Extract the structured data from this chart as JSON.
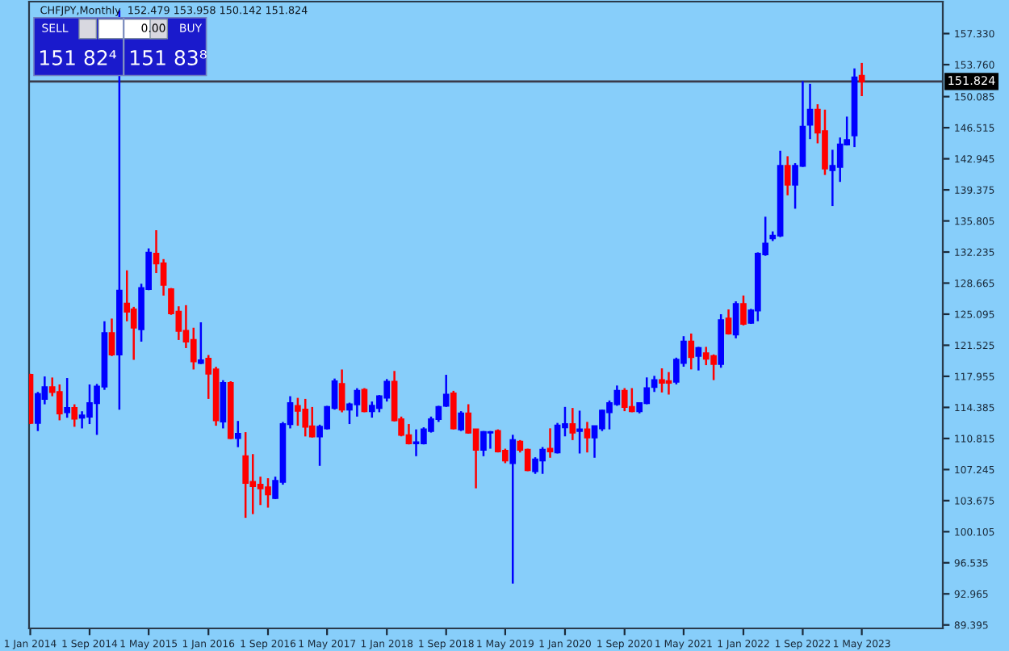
{
  "chart_data": {
    "type": "candlestick",
    "title": "CHFJPY,Monthly  152.479 153.958 150.142 151.824",
    "annotations": [
      "SELL",
      "0.00",
      "BUY",
      "151 82⁴",
      "151 83⁸"
    ],
    "x": [
      "2014-01",
      "2014-02",
      "2014-03",
      "2014-04",
      "2014-05",
      "2014-06",
      "2014-07",
      "2014-08",
      "2014-09",
      "2014-10",
      "2014-11",
      "2014-12",
      "2015-01",
      "2015-02",
      "2015-03",
      "2015-04",
      "2015-05",
      "2015-06",
      "2015-07",
      "2015-08",
      "2015-09",
      "2015-10",
      "2015-11",
      "2015-12",
      "2016-01",
      "2016-02",
      "2016-03",
      "2016-04",
      "2016-05",
      "2016-06",
      "2016-07",
      "2016-08",
      "2016-09",
      "2016-10",
      "2016-11",
      "2016-12",
      "2017-01",
      "2017-02",
      "2017-03",
      "2017-04",
      "2017-05",
      "2017-06",
      "2017-07",
      "2017-08",
      "2017-09",
      "2017-10",
      "2017-11",
      "2017-12",
      "2018-01",
      "2018-02",
      "2018-03",
      "2018-04",
      "2018-05",
      "2018-06",
      "2018-07",
      "2018-08",
      "2018-09",
      "2018-10",
      "2018-11",
      "2018-12",
      "2019-01",
      "2019-02",
      "2019-03",
      "2019-04",
      "2019-05",
      "2019-06",
      "2019-07",
      "2019-08",
      "2019-09",
      "2019-10",
      "2019-11",
      "2019-12",
      "2020-01",
      "2020-02",
      "2020-03",
      "2020-04",
      "2020-05",
      "2020-06",
      "2020-07",
      "2020-08",
      "2020-09",
      "2020-10",
      "2020-11",
      "2020-12",
      "2021-01",
      "2021-02",
      "2021-03",
      "2021-04",
      "2021-05",
      "2021-06",
      "2021-07",
      "2021-08",
      "2021-09",
      "2021-10",
      "2021-11",
      "2021-12",
      "2022-01",
      "2022-02",
      "2022-03",
      "2022-04",
      "2022-05",
      "2022-06",
      "2022-07",
      "2022-08",
      "2022-09",
      "2022-10",
      "2022-11",
      "2022-12",
      "2023-01",
      "2023-02",
      "2023-03",
      "2023-04",
      "2023-05"
    ],
    "ohlc": [
      [
        118.13,
        118.25,
        112.47,
        112.59
      ],
      [
        112.59,
        116.16,
        111.67,
        115.91
      ],
      [
        115.36,
        117.94,
        114.74,
        116.71
      ],
      [
        116.71,
        117.82,
        115.67,
        116.16
      ],
      [
        116.16,
        117.02,
        112.9,
        113.7
      ],
      [
        113.82,
        117.76,
        113.2,
        114.31
      ],
      [
        114.31,
        114.74,
        112.16,
        113.08
      ],
      [
        113.2,
        113.94,
        111.97,
        113.45
      ],
      [
        113.33,
        117.02,
        112.47,
        114.87
      ],
      [
        114.87,
        117.08,
        111.23,
        116.77
      ],
      [
        116.77,
        124.28,
        116.4,
        122.93
      ],
      [
        122.93,
        124.59,
        120.28,
        120.47
      ],
      [
        120.47,
        160.0,
        114.13,
        127.79
      ],
      [
        126.31,
        130.13,
        124.28,
        125.39
      ],
      [
        125.63,
        125.94,
        119.85,
        123.54
      ],
      [
        123.36,
        128.59,
        121.94,
        128.1
      ],
      [
        127.97,
        132.65,
        127.85,
        132.16
      ],
      [
        132.03,
        134.74,
        129.82,
        130.93
      ],
      [
        130.93,
        131.42,
        127.23,
        128.47
      ],
      [
        127.97,
        128.1,
        125.02,
        125.2
      ],
      [
        125.39,
        126.0,
        122.13,
        123.17
      ],
      [
        123.17,
        126.13,
        121.2,
        121.94
      ],
      [
        122.13,
        123.54,
        118.74,
        119.67
      ],
      [
        119.48,
        124.16,
        119.36,
        119.79
      ],
      [
        119.97,
        120.4,
        115.36,
        118.25
      ],
      [
        118.74,
        119.05,
        112.28,
        112.9
      ],
      [
        112.77,
        117.51,
        111.97,
        117.2
      ],
      [
        117.2,
        117.39,
        110.74,
        110.87
      ],
      [
        110.87,
        112.83,
        109.82,
        111.36
      ],
      [
        108.77,
        111.54,
        101.7,
        105.7
      ],
      [
        105.82,
        109.02,
        102.13,
        105.33
      ],
      [
        105.51,
        106.43,
        103.17,
        105.08
      ],
      [
        105.2,
        106.25,
        102.87,
        104.4
      ],
      [
        103.97,
        106.43,
        103.85,
        105.94
      ],
      [
        105.82,
        112.71,
        105.51,
        112.47
      ],
      [
        112.47,
        115.67,
        111.97,
        114.87
      ],
      [
        114.56,
        115.48,
        112.28,
        114.0
      ],
      [
        114.13,
        115.36,
        111.05,
        112.16
      ],
      [
        112.22,
        114.43,
        110.93,
        111.05
      ],
      [
        111.05,
        112.4,
        107.67,
        112.16
      ],
      [
        111.97,
        114.56,
        111.85,
        114.43
      ],
      [
        114.31,
        117.7,
        114.13,
        117.39
      ],
      [
        117.08,
        118.74,
        113.82,
        114.13
      ],
      [
        114.13,
        114.93,
        112.47,
        114.74
      ],
      [
        114.74,
        116.59,
        113.33,
        116.28
      ],
      [
        116.41,
        116.6,
        113.83,
        113.95
      ],
      [
        113.95,
        115.06,
        113.21,
        114.57
      ],
      [
        114.32,
        115.8,
        113.83,
        115.67
      ],
      [
        115.49,
        117.64,
        115.06,
        117.33
      ],
      [
        117.33,
        118.57,
        112.78,
        112.9
      ],
      [
        113.03,
        113.33,
        111.06,
        111.24
      ],
      [
        111.18,
        112.47,
        110.13,
        110.26
      ],
      [
        110.26,
        111.86,
        108.78,
        110.38
      ],
      [
        110.26,
        112.1,
        110.13,
        111.86
      ],
      [
        111.67,
        113.33,
        111.49,
        113.03
      ],
      [
        113.03,
        114.57,
        112.72,
        114.44
      ],
      [
        114.57,
        118.13,
        114.44,
        115.86
      ],
      [
        115.98,
        116.29,
        111.86,
        111.98
      ],
      [
        111.86,
        113.95,
        111.67,
        113.7
      ],
      [
        113.7,
        114.75,
        111.36,
        111.49
      ],
      [
        111.86,
        111.86,
        105.09,
        109.52
      ],
      [
        109.52,
        111.67,
        108.78,
        111.55
      ],
      [
        111.49,
        111.67,
        109.64,
        111.55
      ],
      [
        111.67,
        111.86,
        109.21,
        109.33
      ],
      [
        109.4,
        109.64,
        107.98,
        108.29
      ],
      [
        107.98,
        111.24,
        94.14,
        110.63
      ],
      [
        110.44,
        110.63,
        109.21,
        109.52
      ],
      [
        109.52,
        109.64,
        107.06,
        107.18
      ],
      [
        107.06,
        108.66,
        106.75,
        108.41
      ],
      [
        108.29,
        109.83,
        106.75,
        109.52
      ],
      [
        109.64,
        111.98,
        108.6,
        109.33
      ],
      [
        109.21,
        112.6,
        109.09,
        112.29
      ],
      [
        112.1,
        114.44,
        111.06,
        112.47
      ],
      [
        112.47,
        114.32,
        110.63,
        111.49
      ],
      [
        111.67,
        114.01,
        109.09,
        111.86
      ],
      [
        111.86,
        112.72,
        109.21,
        110.93
      ],
      [
        110.93,
        112.29,
        108.6,
        112.23
      ],
      [
        111.98,
        114.13,
        111.67,
        114.01
      ],
      [
        113.83,
        115.18,
        111.86,
        114.87
      ],
      [
        114.75,
        116.9,
        114.57,
        116.29
      ],
      [
        116.29,
        116.6,
        113.95,
        114.44
      ],
      [
        114.44,
        116.6,
        113.83,
        113.95
      ],
      [
        113.95,
        114.93,
        113.7,
        114.87
      ],
      [
        114.87,
        117.83,
        114.75,
        116.6
      ],
      [
        116.72,
        118.01,
        116.16,
        117.52
      ],
      [
        117.52,
        118.87,
        116.1,
        117.21
      ],
      [
        117.4,
        118.44,
        115.86,
        117.21
      ],
      [
        117.34,
        120.1,
        117.03,
        119.86
      ],
      [
        119.49,
        122.57,
        119.06,
        121.95
      ],
      [
        121.95,
        122.87,
        118.75,
        120.17
      ],
      [
        120.29,
        121.34,
        118.63,
        121.21
      ],
      [
        120.6,
        121.34,
        119.24,
        119.98
      ],
      [
        120.29,
        120.47,
        117.52,
        119.37
      ],
      [
        119.37,
        125.09,
        118.94,
        124.41
      ],
      [
        124.6,
        125.64,
        122.75,
        122.87
      ],
      [
        122.75,
        126.57,
        122.32,
        126.26
      ],
      [
        126.26,
        127.24,
        123.8,
        123.98
      ],
      [
        124.1,
        125.7,
        123.98,
        125.52
      ],
      [
        125.52,
        132.2,
        124.29,
        132.04
      ],
      [
        131.98,
        136.29,
        131.8,
        133.21
      ],
      [
        133.8,
        134.6,
        133.5,
        134.1
      ],
      [
        134.13,
        143.86,
        133.95,
        142.13
      ],
      [
        142.13,
        143.24,
        138.75,
        139.98
      ],
      [
        139.98,
        142.44,
        137.21,
        142.13
      ],
      [
        142.13,
        151.86,
        142.01,
        146.62
      ],
      [
        146.87,
        151.55,
        145.21,
        148.59
      ],
      [
        148.59,
        149.21,
        144.72,
        145.95
      ],
      [
        146.13,
        148.59,
        141.09,
        141.83
      ],
      [
        141.64,
        143.98,
        137.52,
        142.13
      ],
      [
        142.01,
        145.39,
        140.29,
        144.59
      ],
      [
        144.59,
        147.79,
        144.47,
        145.09
      ],
      [
        145.64,
        153.33,
        144.29,
        152.29
      ],
      [
        152.479,
        153.958,
        150.142,
        151.824
      ]
    ],
    "colors": [
      "#ff0000",
      "#0000ff",
      "#0000ff",
      "#ff0000",
      "#ff0000",
      "#0000ff",
      "#ff0000",
      "#0000ff",
      "#0000ff",
      "#0000ff",
      "#0000ff",
      "#ff0000",
      "#0000ff",
      "#ff0000",
      "#ff0000",
      "#0000ff",
      "#0000ff",
      "#ff0000",
      "#ff0000",
      "#ff0000",
      "#ff0000",
      "#ff0000",
      "#ff0000",
      "#0000ff",
      "#ff0000",
      "#ff0000",
      "#0000ff",
      "#ff0000",
      "#0000ff",
      "#ff0000",
      "#ff0000",
      "#ff0000",
      "#ff0000",
      "#0000ff",
      "#0000ff",
      "#0000ff",
      "#ff0000",
      "#ff0000",
      "#ff0000",
      "#0000ff",
      "#0000ff",
      "#0000ff",
      "#ff0000",
      "#0000ff",
      "#0000ff",
      "#ff0000",
      "#0000ff",
      "#0000ff",
      "#0000ff",
      "#ff0000",
      "#ff0000",
      "#ff0000",
      "#0000ff",
      "#0000ff",
      "#0000ff",
      "#0000ff",
      "#0000ff",
      "#ff0000",
      "#0000ff",
      "#ff0000",
      "#ff0000",
      "#0000ff",
      "#0000ff",
      "#ff0000",
      "#ff0000",
      "#0000ff",
      "#ff0000",
      "#ff0000",
      "#0000ff",
      "#0000ff",
      "#ff0000",
      "#0000ff",
      "#0000ff",
      "#ff0000",
      "#0000ff",
      "#ff0000",
      "#0000ff",
      "#0000ff",
      "#0000ff",
      "#0000ff",
      "#ff0000",
      "#ff0000",
      "#0000ff",
      "#0000ff",
      "#0000ff",
      "#ff0000",
      "#ff0000",
      "#0000ff",
      "#0000ff",
      "#ff0000",
      "#0000ff",
      "#ff0000",
      "#ff0000",
      "#0000ff",
      "#ff0000",
      "#0000ff",
      "#ff0000",
      "#0000ff",
      "#0000ff",
      "#0000ff",
      "#0000ff",
      "#0000ff",
      "#ff0000",
      "#0000ff",
      "#0000ff",
      "#0000ff",
      "#ff0000",
      "#ff0000",
      "#0000ff",
      "#0000ff",
      "#0000ff",
      "#0000ff",
      "#ff0000"
    ],
    "xlim": [
      "2013-12-27",
      "2024-03-28"
    ],
    "xticks": [
      {
        "value": "2014-01-01",
        "label": "1 Jan 2014"
      },
      {
        "value": "2014-09-01",
        "label": "1 Sep 2014"
      },
      {
        "value": "2015-05-01",
        "label": "1 May 2015"
      },
      {
        "value": "2016-01-01",
        "label": "1 Jan 2016"
      },
      {
        "value": "2016-09-01",
        "label": "1 Sep 2016"
      },
      {
        "value": "2017-05-01",
        "label": "1 May 2017"
      },
      {
        "value": "2018-01-01",
        "label": "1 Jan 2018"
      },
      {
        "value": "2018-09-01",
        "label": "1 Sep 2018"
      },
      {
        "value": "2019-05-01",
        "label": "1 May 2019"
      },
      {
        "value": "2020-01-01",
        "label": "1 Jan 2020"
      },
      {
        "value": "2020-09-01",
        "label": "1 Sep 2020"
      },
      {
        "value": "2021-05-01",
        "label": "1 May 2021"
      },
      {
        "value": "2022-01-01",
        "label": "1 Jan 2022"
      },
      {
        "value": "2022-09-01",
        "label": "1 Sep 2022"
      },
      {
        "value": "2023-05-01",
        "label": "1 May 2023"
      }
    ],
    "ylim": [
      89.0,
      161.0
    ],
    "yticks": [
      89.395,
      92.965,
      96.535,
      100.105,
      103.675,
      107.245,
      110.815,
      114.385,
      117.955,
      121.525,
      125.095,
      128.665,
      132.235,
      135.805,
      139.375,
      142.945,
      146.515,
      150.085,
      {
        "value": 153.76,
        "label": "153.760"
      },
      {
        "value": 157.33,
        "label": "157.330"
      }
    ],
    "ref_lines": [
      {
        "axis": "y",
        "value": 151.824,
        "label": "151.824",
        "color": "#3a3a4a"
      }
    ],
    "grid": false
  }
}
